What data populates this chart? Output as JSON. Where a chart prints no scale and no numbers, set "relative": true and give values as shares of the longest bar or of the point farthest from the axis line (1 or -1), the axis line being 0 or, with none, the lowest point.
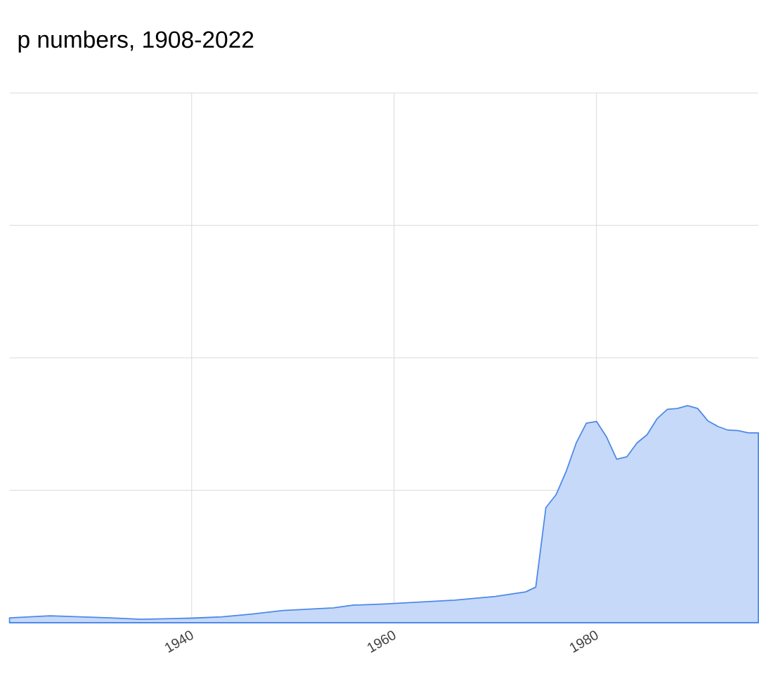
{
  "chart_data": {
    "type": "area",
    "title": "p numbers, 1908-2022",
    "relative": true,
    "grid": true,
    "xlim": [
      1922,
      1996
    ],
    "xticks": [
      1940,
      1960,
      1980
    ],
    "x": [
      1922,
      1926,
      1932,
      1935,
      1940,
      1943,
      1946,
      1949,
      1954,
      1956,
      1959,
      1966,
      1970,
      1973,
      1974,
      1975,
      1976,
      1977,
      1978,
      1979,
      1980,
      1981,
      1982,
      1983,
      1984,
      1985,
      1986,
      1987,
      1988,
      1989,
      1990,
      1991,
      1992,
      1993,
      1994,
      1995,
      1996
    ],
    "series": [
      {
        "color": "#c6d9f8",
        "values": [
          0.022,
          0.032,
          0.022,
          0.016,
          0.021,
          0.027,
          0.04,
          0.056,
          0.068,
          0.081,
          0.086,
          0.104,
          0.121,
          0.142,
          0.164,
          0.53,
          0.589,
          0.696,
          0.828,
          0.919,
          0.927,
          0.855,
          0.753,
          0.764,
          0.828,
          0.866,
          0.94,
          0.983,
          0.987,
          1,
          0.987,
          0.93,
          0.904,
          0.887,
          0.885,
          0.874,
          0.874
        ]
      }
    ]
  }
}
